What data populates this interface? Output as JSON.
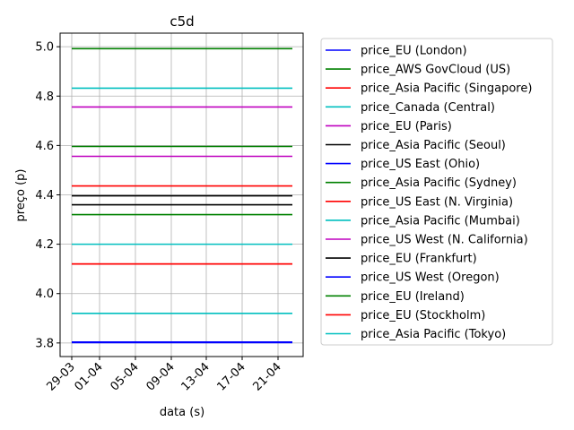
{
  "chart_data": {
    "type": "line",
    "title": "c5d",
    "xlabel": "data (s)",
    "ylabel": "preço (p)",
    "x_ticks": [
      "29-03",
      "01-04",
      "05-04",
      "09-04",
      "13-04",
      "17-04",
      "21-04"
    ],
    "x_range": [
      "29-03",
      "23-04"
    ],
    "ylim": [
      3.745,
      5.055
    ],
    "y_ticks": [
      "3.8",
      "4.0",
      "4.2",
      "4.4",
      "4.6",
      "4.8",
      "5.0"
    ],
    "grid": true,
    "legend_position": "outside-right",
    "series": [
      {
        "name": "price_EU (London)",
        "color": "#0000ff",
        "value": 3.804
      },
      {
        "name": "price_AWS GovCloud (US)",
        "color": "#008000",
        "value": 4.992
      },
      {
        "name": "price_Asia Pacific (Singapore)",
        "color": "#ff0000",
        "value": 4.436
      },
      {
        "name": "price_Canada (Central)",
        "color": "#00bfbf",
        "value": 4.832
      },
      {
        "name": "price_EU (Paris)",
        "color": "#bf00bf",
        "value": 4.756
      },
      {
        "name": "price_Asia Pacific (Seoul)",
        "color": "#000000",
        "value": 4.396
      },
      {
        "name": "price_US East (Ohio)",
        "color": "#0000ff",
        "value": 3.802
      },
      {
        "name": "price_Asia Pacific (Sydney)",
        "color": "#008000",
        "value": 4.32
      },
      {
        "name": "price_US East (N. Virginia)",
        "color": "#ff0000",
        "value": 4.12
      },
      {
        "name": "price_Asia Pacific (Mumbai)",
        "color": "#00bfbf",
        "value": 4.2
      },
      {
        "name": "price_US West (N. California)",
        "color": "#bf00bf",
        "value": 4.556
      },
      {
        "name": "price_EU (Frankfurt)",
        "color": "#000000",
        "value": 4.36
      },
      {
        "name": "price_US West (Oregon)",
        "color": "#0000ff",
        "value": 3.802
      },
      {
        "name": "price_EU (Ireland)",
        "color": "#008000",
        "value": 4.596
      },
      {
        "name": "price_EU (Stockholm)",
        "color": "#ff0000",
        "value": 4.12
      },
      {
        "name": "price_Asia Pacific (Tokyo)",
        "color": "#00bfbf",
        "value": 3.92
      }
    ]
  }
}
